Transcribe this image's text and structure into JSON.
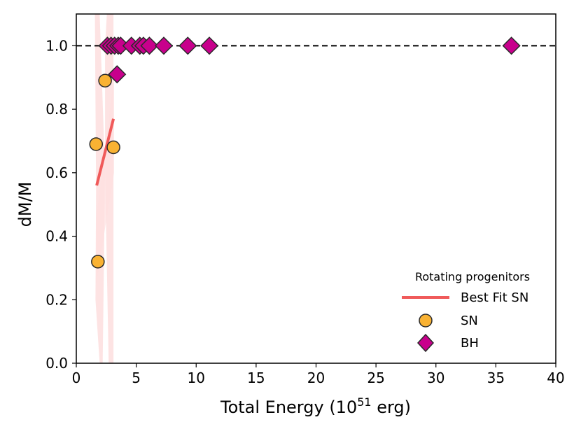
{
  "chart_data": {
    "type": "scatter",
    "xlabel": "Total Energy (10",
    "xlabel_sup": "51",
    "xlabel_unit": " erg)",
    "ylabel": "dM/M",
    "xlim": [
      0,
      40
    ],
    "ylim": [
      0,
      1.1
    ],
    "xticks": [
      "0",
      "5",
      "10",
      "15",
      "20",
      "25",
      "30",
      "35",
      "40"
    ],
    "yticks": [
      "0.0",
      "0.2",
      "0.4",
      "0.6",
      "0.8",
      "1.0"
    ],
    "grid": false,
    "reference_line": {
      "y": 1.0,
      "style": "dashed",
      "color": "#000000"
    },
    "legend": {
      "title": "Rotating progenitors",
      "placement": "lower-right",
      "entries": [
        "Best Fit SN",
        "SN",
        "BH"
      ]
    },
    "series": [
      {
        "name": "Best Fit SN",
        "kind": "line",
        "color": "#f05a5a",
        "x": [
          1.7,
          3.1
        ],
        "y": [
          0.56,
          0.77
        ],
        "band_color": "#fde0e0"
      },
      {
        "name": "SN",
        "kind": "scatter",
        "marker": "circle",
        "color": "#f9b233",
        "x": [
          1.65,
          1.8,
          2.4,
          3.1
        ],
        "y": [
          0.69,
          0.32,
          0.89,
          0.68
        ]
      },
      {
        "name": "BH",
        "kind": "scatter",
        "marker": "diamond",
        "color": "#c8008c",
        "x": [
          2.6,
          2.9,
          3.2,
          3.4,
          3.5,
          3.7,
          4.6,
          5.3,
          5.6,
          6.1,
          7.3,
          9.3,
          11.1,
          36.3
        ],
        "y": [
          1.0,
          1.0,
          1.0,
          0.91,
          1.0,
          1.0,
          1.0,
          1.0,
          1.0,
          1.0,
          1.0,
          1.0,
          1.0,
          1.0
        ]
      }
    ]
  }
}
